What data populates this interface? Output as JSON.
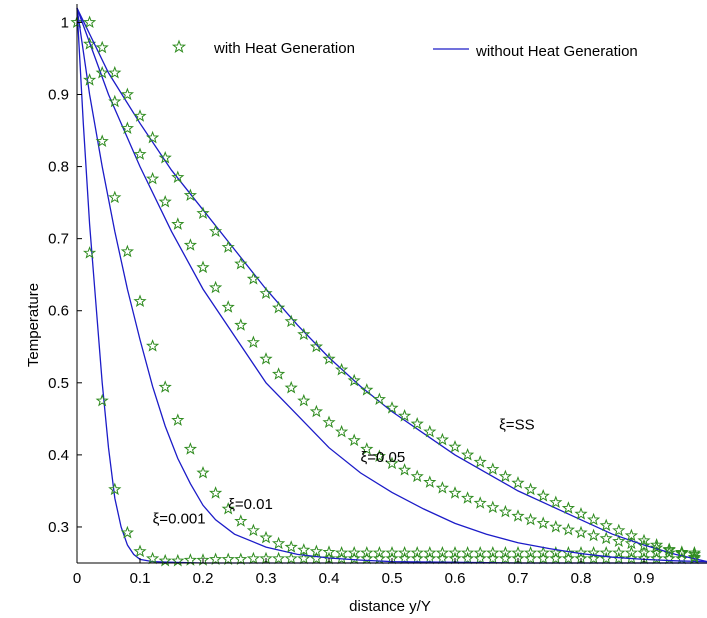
{
  "chart_data": {
    "type": "line",
    "title": "",
    "xlabel": "distance y/Y",
    "ylabel": "Temperature",
    "xlim": [
      0,
      1
    ],
    "ylim": [
      0.25,
      1.02
    ],
    "x_ticks": [
      "0",
      "0.1",
      "0.2",
      "0.3",
      "0.4",
      "0.5",
      "0.6",
      "0.7",
      "0.8",
      "0.9"
    ],
    "y_ticks": [
      "0.3",
      "0.4",
      "0.5",
      "0.6",
      "0.7",
      "0.8",
      "0.9",
      "1"
    ],
    "grid": false,
    "legend": {
      "placement": "top",
      "entries": [
        {
          "label": "with Heat Generation",
          "marker": "star",
          "color": "#2e8b1e"
        },
        {
          "label": "without Heat Generation",
          "marker": "line",
          "color": "#1c1cc8"
        }
      ]
    },
    "annotations": [
      {
        "text": "ξ=0.001",
        "x": 0.12,
        "y": 0.305
      },
      {
        "text": "ξ=0.01",
        "x": 0.24,
        "y": 0.325
      },
      {
        "text": "ξ=0.05",
        "x": 0.45,
        "y": 0.39
      },
      {
        "text": "ξ=SS",
        "x": 0.67,
        "y": 0.435
      }
    ],
    "series": [
      {
        "name": "without Heat Generation",
        "xi": "ξ=0.001",
        "style": "line",
        "color": "#1c1cc8",
        "x": [
          0,
          0.01,
          0.02,
          0.03,
          0.04,
          0.05,
          0.06,
          0.07,
          0.08,
          0.09,
          0.1,
          0.12,
          0.15,
          0.2,
          0.3,
          0.5,
          1.0
        ],
        "y": [
          1.02,
          0.86,
          0.72,
          0.61,
          0.5,
          0.41,
          0.34,
          0.3,
          0.275,
          0.262,
          0.255,
          0.252,
          0.251,
          0.25,
          0.25,
          0.25,
          0.25
        ]
      },
      {
        "name": "with Heat Generation",
        "xi": "ξ=0.001",
        "style": "star",
        "color": "#2e8b1e",
        "x": [
          0,
          0.02,
          0.04,
          0.06,
          0.08,
          0.1,
          0.12,
          0.14,
          0.16,
          0.18,
          0.2,
          0.22,
          0.24,
          0.26,
          0.28,
          0.3,
          0.32,
          0.34,
          0.36,
          0.38,
          0.4,
          0.42,
          0.44,
          0.46,
          0.48,
          0.5,
          0.52,
          0.54,
          0.56,
          0.58,
          0.6,
          0.62,
          0.64,
          0.66,
          0.68,
          0.7,
          0.72,
          0.74,
          0.76,
          0.78,
          0.8,
          0.82,
          0.84,
          0.86,
          0.88,
          0.9,
          0.92,
          0.94,
          0.96,
          0.98,
          1.0
        ],
        "y": [
          1.0,
          0.68,
          0.475,
          0.352,
          0.292,
          0.266,
          0.256,
          0.253,
          0.253,
          0.254,
          0.254,
          0.255,
          0.255,
          0.255,
          0.256,
          0.256,
          0.256,
          0.256,
          0.256,
          0.256,
          0.256,
          0.256,
          0.256,
          0.256,
          0.256,
          0.256,
          0.256,
          0.256,
          0.256,
          0.256,
          0.256,
          0.256,
          0.256,
          0.256,
          0.256,
          0.256,
          0.256,
          0.256,
          0.256,
          0.256,
          0.256,
          0.256,
          0.256,
          0.256,
          0.256,
          0.256,
          0.256,
          0.256,
          0.256,
          0.256,
          0.256
        ]
      },
      {
        "name": "without Heat Generation",
        "xi": "ξ=0.01",
        "style": "line",
        "color": "#1c1cc8",
        "x": [
          0,
          0.02,
          0.04,
          0.06,
          0.08,
          0.1,
          0.12,
          0.14,
          0.16,
          0.18,
          0.2,
          0.22,
          0.25,
          0.3,
          0.35,
          0.4,
          0.45,
          0.5,
          0.6,
          0.7,
          1.0
        ],
        "y": [
          1.02,
          0.9,
          0.8,
          0.71,
          0.63,
          0.56,
          0.495,
          0.44,
          0.395,
          0.36,
          0.33,
          0.31,
          0.29,
          0.272,
          0.262,
          0.257,
          0.254,
          0.252,
          0.251,
          0.25,
          0.25
        ]
      },
      {
        "name": "with Heat Generation",
        "xi": "ξ=0.01",
        "style": "star",
        "color": "#2e8b1e",
        "x": [
          0.02,
          0.04,
          0.06,
          0.08,
          0.1,
          0.12,
          0.14,
          0.16,
          0.18,
          0.2,
          0.22,
          0.24,
          0.26,
          0.28,
          0.3,
          0.32,
          0.34,
          0.36,
          0.38,
          0.4,
          0.42,
          0.44,
          0.46,
          0.48,
          0.5,
          0.52,
          0.54,
          0.56,
          0.58,
          0.6,
          0.62,
          0.64,
          0.66,
          0.68,
          0.7,
          0.72,
          0.74,
          0.76,
          0.78,
          0.8,
          0.82,
          0.84,
          0.86,
          0.88,
          0.9,
          0.92,
          0.94,
          0.96,
          0.98,
          1.0
        ],
        "y": [
          0.92,
          0.835,
          0.757,
          0.682,
          0.613,
          0.551,
          0.494,
          0.448,
          0.408,
          0.375,
          0.347,
          0.325,
          0.308,
          0.295,
          0.285,
          0.277,
          0.272,
          0.268,
          0.266,
          0.265,
          0.264,
          0.264,
          0.264,
          0.264,
          0.264,
          0.264,
          0.264,
          0.264,
          0.264,
          0.264,
          0.264,
          0.264,
          0.264,
          0.264,
          0.264,
          0.264,
          0.264,
          0.264,
          0.264,
          0.264,
          0.264,
          0.264,
          0.264,
          0.264,
          0.264,
          0.264,
          0.264,
          0.264,
          0.264,
          0.264
        ]
      },
      {
        "name": "without Heat Generation",
        "xi": "ξ=0.05",
        "style": "line",
        "color": "#1c1cc8",
        "x": [
          0,
          0.05,
          0.1,
          0.15,
          0.2,
          0.25,
          0.3,
          0.35,
          0.4,
          0.45,
          0.5,
          0.55,
          0.6,
          0.65,
          0.7,
          0.75,
          0.8,
          0.85,
          0.9,
          0.95,
          1.0
        ],
        "y": [
          1.02,
          0.9,
          0.8,
          0.71,
          0.63,
          0.565,
          0.5,
          0.455,
          0.41,
          0.375,
          0.348,
          0.325,
          0.305,
          0.29,
          0.278,
          0.27,
          0.263,
          0.258,
          0.255,
          0.253,
          0.252
        ]
      },
      {
        "name": "with Heat Generation",
        "xi": "ξ=0.05",
        "style": "star",
        "color": "#2e8b1e",
        "x": [
          0.02,
          0.04,
          0.06,
          0.08,
          0.1,
          0.12,
          0.14,
          0.16,
          0.18,
          0.2,
          0.22,
          0.24,
          0.26,
          0.28,
          0.3,
          0.32,
          0.34,
          0.36,
          0.38,
          0.4,
          0.42,
          0.44,
          0.46,
          0.48,
          0.5,
          0.52,
          0.54,
          0.56,
          0.58,
          0.6,
          0.62,
          0.64,
          0.66,
          0.68,
          0.7,
          0.72,
          0.74,
          0.76,
          0.78,
          0.8,
          0.82,
          0.84,
          0.86,
          0.88,
          0.9,
          0.92,
          0.94,
          0.96,
          0.98,
          1.0
        ],
        "y": [
          0.97,
          0.93,
          0.89,
          0.853,
          0.817,
          0.783,
          0.751,
          0.72,
          0.691,
          0.66,
          0.632,
          0.605,
          0.58,
          0.556,
          0.533,
          0.512,
          0.493,
          0.475,
          0.46,
          0.445,
          0.432,
          0.42,
          0.408,
          0.398,
          0.388,
          0.379,
          0.37,
          0.362,
          0.354,
          0.347,
          0.34,
          0.333,
          0.327,
          0.321,
          0.315,
          0.31,
          0.305,
          0.3,
          0.296,
          0.292,
          0.288,
          0.284,
          0.28,
          0.277,
          0.274,
          0.271,
          0.268,
          0.265,
          0.262,
          0.26
        ]
      },
      {
        "name": "without Heat Generation",
        "xi": "ξ=SS",
        "style": "line",
        "color": "#1c1cc8",
        "x": [
          0,
          0.05,
          0.1,
          0.15,
          0.2,
          0.25,
          0.3,
          0.35,
          0.4,
          0.45,
          0.5,
          0.55,
          0.6,
          0.65,
          0.7,
          0.75,
          0.8,
          0.85,
          0.9,
          0.95,
          1.0
        ],
        "y": [
          1.02,
          0.93,
          0.86,
          0.795,
          0.74,
          0.685,
          0.63,
          0.58,
          0.535,
          0.495,
          0.46,
          0.43,
          0.4,
          0.375,
          0.35,
          0.33,
          0.31,
          0.29,
          0.275,
          0.262,
          0.252
        ]
      },
      {
        "name": "with Heat Generation",
        "xi": "ξ=SS",
        "style": "star",
        "color": "#2e8b1e",
        "x": [
          0.02,
          0.04,
          0.06,
          0.08,
          0.1,
          0.12,
          0.14,
          0.16,
          0.18,
          0.2,
          0.22,
          0.24,
          0.26,
          0.28,
          0.3,
          0.32,
          0.34,
          0.36,
          0.38,
          0.4,
          0.42,
          0.44,
          0.46,
          0.48,
          0.5,
          0.52,
          0.54,
          0.56,
          0.58,
          0.6,
          0.62,
          0.64,
          0.66,
          0.68,
          0.7,
          0.72,
          0.74,
          0.76,
          0.78,
          0.8,
          0.82,
          0.84,
          0.86,
          0.88,
          0.9,
          0.92,
          0.94,
          0.96,
          0.98,
          1.0
        ],
        "y": [
          1.0,
          0.965,
          0.93,
          0.9,
          0.87,
          0.84,
          0.812,
          0.785,
          0.76,
          0.735,
          0.71,
          0.688,
          0.665,
          0.644,
          0.624,
          0.604,
          0.585,
          0.567,
          0.55,
          0.533,
          0.518,
          0.503,
          0.49,
          0.477,
          0.465,
          0.454,
          0.443,
          0.432,
          0.421,
          0.411,
          0.4,
          0.39,
          0.38,
          0.37,
          0.361,
          0.352,
          0.343,
          0.334,
          0.326,
          0.318,
          0.31,
          0.302,
          0.295,
          0.288,
          0.281,
          0.275,
          0.269,
          0.263,
          0.258,
          0.253
        ]
      }
    ]
  }
}
